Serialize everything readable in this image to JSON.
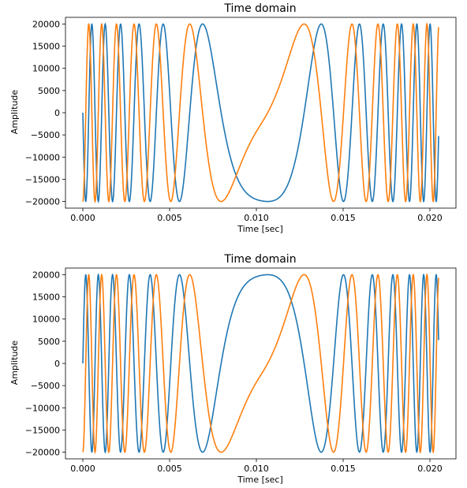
{
  "chart_data": [
    {
      "type": "line",
      "title": "Time domain",
      "xlabel": "Time [sec]",
      "ylabel": "Amplitude",
      "xlim": [
        -0.001,
        0.0215
      ],
      "ylim": [
        -21500,
        21500
      ],
      "xticks": [
        0.0,
        0.005,
        0.01,
        0.015,
        0.02
      ],
      "xtick_labels": [
        "0.000",
        "0.005",
        "0.010",
        "0.015",
        "0.020"
      ],
      "yticks": [
        -20000,
        -15000,
        -10000,
        -5000,
        0,
        5000,
        10000,
        15000,
        20000
      ],
      "ytick_labels": [
        "−20000",
        "−15000",
        "−10000",
        "−5000",
        "0",
        "5000",
        "10000",
        "15000",
        "20000"
      ],
      "grid": false,
      "legend": "none",
      "series": [
        {
          "color": "#1f77b4",
          "amplitude": 20000,
          "phase_offset": 0,
          "t_end": 0.0205,
          "f_start": 1500,
          "f_end": 50
        },
        {
          "color": "#ff7f0e",
          "amplitude": 20000,
          "phase_offset": -1.5708,
          "t_end": 0.0205,
          "f_start": 1500,
          "f_end": 50
        }
      ]
    },
    {
      "type": "line",
      "title": "Time domain",
      "xlabel": "Time [sec]",
      "ylabel": "Amplitude",
      "xlim": [
        -0.001,
        0.0215
      ],
      "ylim": [
        -21500,
        21500
      ],
      "xticks": [
        0.0,
        0.005,
        0.01,
        0.015,
        0.02
      ],
      "xtick_labels": [
        "0.000",
        "0.005",
        "0.010",
        "0.015",
        "0.020"
      ],
      "yticks": [
        -20000,
        -15000,
        -10000,
        -5000,
        0,
        5000,
        10000,
        15000,
        20000
      ],
      "ytick_labels": [
        "−20000",
        "−15000",
        "−10000",
        "−5000",
        "0",
        "5000",
        "10000",
        "15000",
        "20000"
      ],
      "grid": false,
      "legend": "none",
      "series": [
        {
          "color": "#1f77b4",
          "amplitude": 20000,
          "phase_offset": 0,
          "t_end": 0.0205,
          "f_start": 1500,
          "f_end": 50
        },
        {
          "color": "#ff7f0e",
          "amplitude": 20000,
          "phase_offset": -1.5708,
          "t_end": 0.0205,
          "f_start": 1500,
          "f_end": 50
        }
      ]
    }
  ]
}
